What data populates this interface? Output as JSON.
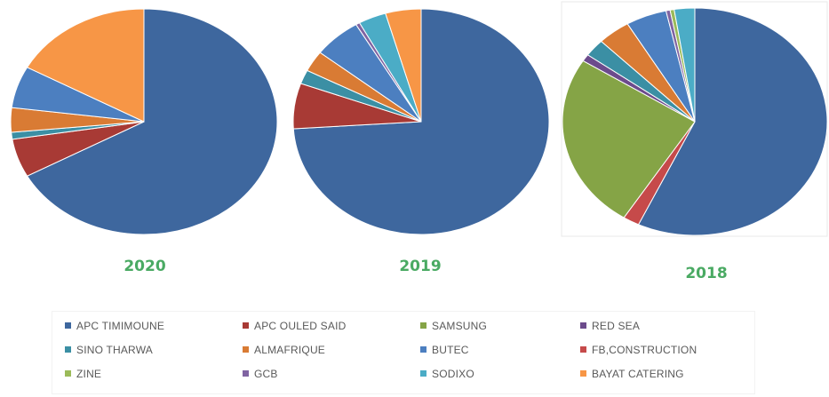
{
  "colors": {
    "year_label": "#4aaa63",
    "slice_stroke": "#ffffff",
    "pie_frame": "#e8e8e8"
  },
  "chart_data": [
    {
      "type": "pie",
      "title": "2020",
      "labels": [
        "APC TIMIMOUNE",
        "APC OULED SAID",
        "SAMSUNG",
        "RED SEA",
        "SINO THARWA",
        "ALMAFRIQUE",
        "BUTEC",
        "FB,CONSTRUCTION",
        "ZINE",
        "GCB",
        "SODIXO",
        "BAYAT CATERING"
      ],
      "values": [
        67,
        5.5,
        0,
        0,
        1,
        3.5,
        6,
        0,
        0,
        0,
        0,
        17
      ],
      "colors": [
        "#3e679e",
        "#a83a35",
        "#85a446",
        "#6c4b8c",
        "#3b8fa4",
        "#d97b34",
        "#4c7fc0",
        "#c64a4a",
        "#9bbb59",
        "#8064a2",
        "#4bacc6",
        "#f79646"
      ]
    },
    {
      "type": "pie",
      "title": "2019",
      "labels": [
        "APC TIMIMOUNE",
        "APC OULED SAID",
        "SAMSUNG",
        "RED SEA",
        "SINO THARWA",
        "ALMAFRIQUE",
        "BUTEC",
        "FB,CONSTRUCTION",
        "ZINE",
        "GCB",
        "SODIXO",
        "BAYAT CATERING"
      ],
      "values": [
        74,
        6.5,
        0,
        0,
        2,
        3,
        6,
        0,
        0,
        0.5,
        3.5,
        4.5
      ],
      "colors": [
        "#3e679e",
        "#a83a35",
        "#85a446",
        "#6c4b8c",
        "#3b8fa4",
        "#d97b34",
        "#4c7fc0",
        "#c64a4a",
        "#9bbb59",
        "#8064a2",
        "#4bacc6",
        "#f79646"
      ]
    },
    {
      "type": "pie",
      "title": "2018",
      "labels": [
        "APC TIMIMOUNE",
        "FB,CONSTRUCTION",
        "SAMSUNG",
        "RED SEA",
        "SINO THARWA",
        "ALMAFRIQUE",
        "BUTEC",
        "GCB",
        "ZINE",
        "SODIXO"
      ],
      "values": [
        57,
        2,
        25,
        1,
        2.5,
        4,
        5,
        0.5,
        0.5,
        2.5
      ],
      "colors": [
        "#3e679e",
        "#c64a4a",
        "#85a446",
        "#6c4b8c",
        "#3b8fa4",
        "#d97b34",
        "#4c7fc0",
        "#8064a2",
        "#9bbb59",
        "#4bacc6"
      ]
    }
  ],
  "legend": [
    {
      "label": "APC TIMIMOUNE",
      "color": "#3e679e"
    },
    {
      "label": "APC OULED SAID",
      "color": "#a83a35"
    },
    {
      "label": "SAMSUNG",
      "color": "#85a446"
    },
    {
      "label": "RED SEA",
      "color": "#6c4b8c"
    },
    {
      "label": "SINO THARWA",
      "color": "#3b8fa4"
    },
    {
      "label": "ALMAFRIQUE",
      "color": "#d97b34"
    },
    {
      "label": "BUTEC",
      "color": "#4c7fc0"
    },
    {
      "label": "FB,CONSTRUCTION",
      "color": "#c64a4a"
    },
    {
      "label": "ZINE",
      "color": "#9bbb59"
    },
    {
      "label": "GCB",
      "color": "#8064a2"
    },
    {
      "label": "SODIXO",
      "color": "#4bacc6"
    },
    {
      "label": "BAYAT CATERING",
      "color": "#f79646"
    }
  ]
}
